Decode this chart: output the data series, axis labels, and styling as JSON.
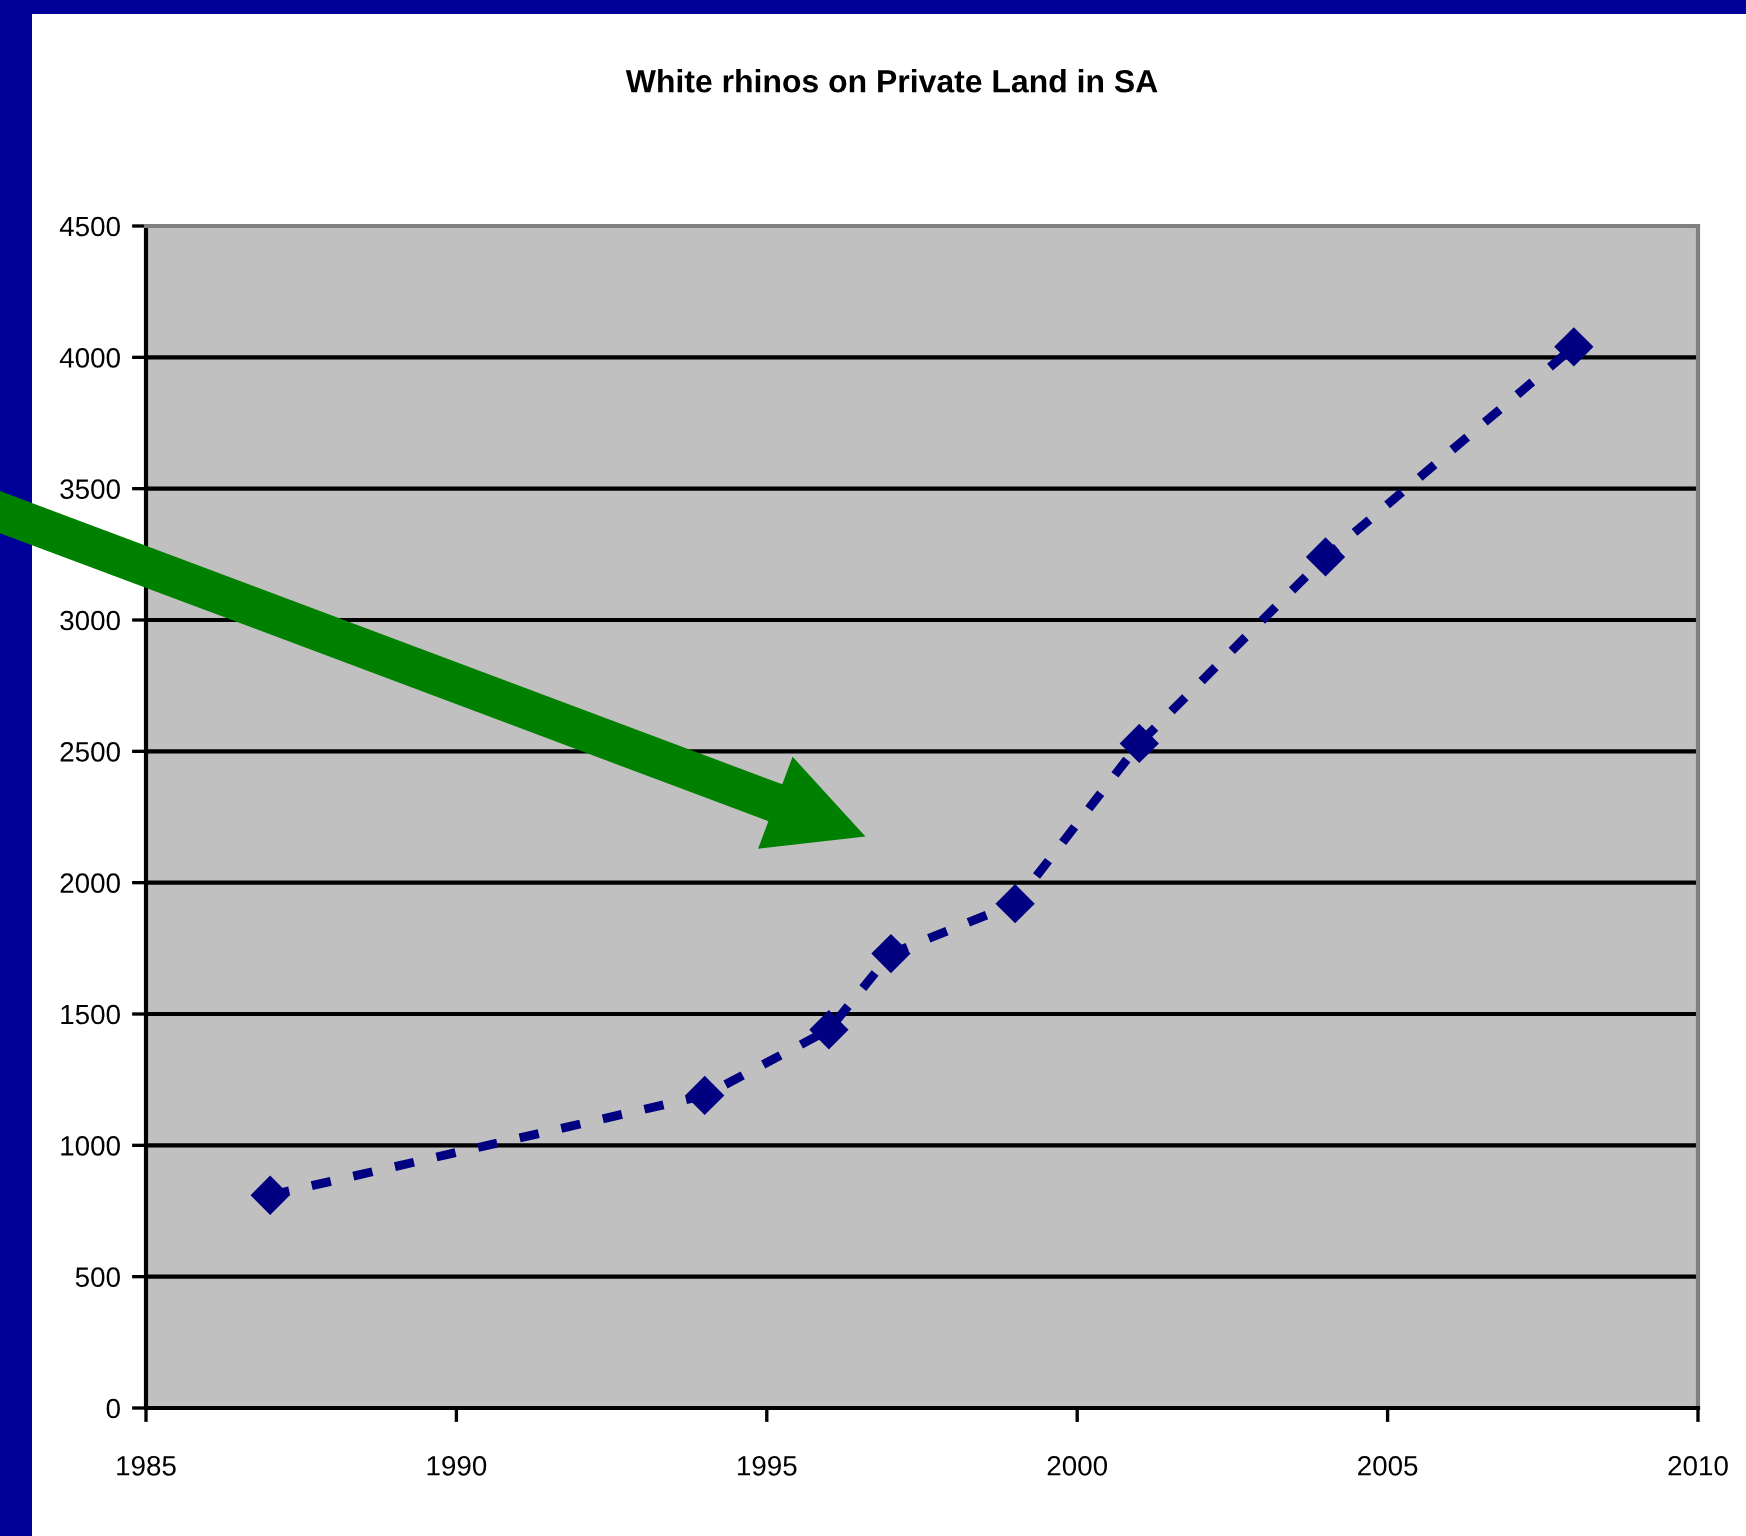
{
  "chart_data": {
    "type": "line",
    "title": "White rhinos on Private Land in SA",
    "x": [
      1987,
      1994,
      1996,
      1997,
      1999,
      2001,
      2004,
      2008
    ],
    "series": [
      {
        "color": "#000080",
        "values": [
          810,
          1190,
          1440,
          1730,
          1920,
          2530,
          3240,
          4040
        ]
      }
    ],
    "xlim": [
      1985,
      2010
    ],
    "xticks": [
      1985,
      1990,
      1995,
      2000,
      2005,
      2010
    ],
    "ylim": [
      0,
      4500
    ],
    "yticks": [
      0,
      500,
      1000,
      1500,
      2000,
      2500,
      3000,
      3500,
      4000,
      4500
    ],
    "grid": "y",
    "marker": "diamond",
    "line_style": "dashed"
  }
}
